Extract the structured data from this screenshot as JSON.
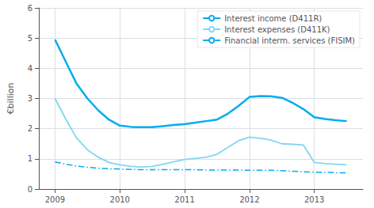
{
  "chart_data": {
    "type": "line",
    "ylabel": "€billion",
    "x": [
      2009,
      2009.17,
      2009.33,
      2009.5,
      2009.67,
      2009.83,
      2010,
      2010.17,
      2010.33,
      2010.5,
      2010.67,
      2010.83,
      2011,
      2011.17,
      2011.33,
      2011.5,
      2011.67,
      2011.83,
      2012,
      2012.17,
      2012.33,
      2012.5,
      2012.67,
      2012.83,
      2013,
      2013.17,
      2013.33,
      2013.5
    ],
    "series": [
      {
        "name": "Interest income (D411R)",
        "color": "#00adef",
        "line_style": "solid",
        "values": [
          4.95,
          4.2,
          3.5,
          3.0,
          2.6,
          2.3,
          2.1,
          2.06,
          2.05,
          2.05,
          2.08,
          2.12,
          2.15,
          2.2,
          2.25,
          2.3,
          2.5,
          2.75,
          3.05,
          3.08,
          3.07,
          3.02,
          2.85,
          2.65,
          2.38,
          2.32,
          2.28,
          2.25
        ]
      },
      {
        "name": "Interest expenses (D411K)",
        "color": "#7fd8f0",
        "line_style": "solid",
        "values": [
          3.0,
          2.3,
          1.7,
          1.3,
          1.05,
          0.88,
          0.8,
          0.75,
          0.73,
          0.75,
          0.82,
          0.9,
          0.98,
          1.02,
          1.05,
          1.15,
          1.38,
          1.6,
          1.72,
          1.68,
          1.62,
          1.5,
          1.48,
          1.46,
          0.88,
          0.84,
          0.82,
          0.8
        ]
      },
      {
        "name": "Financial interm. services (FISIM)",
        "color": "#00adef",
        "line_style": "dashdot",
        "values": [
          0.9,
          0.82,
          0.76,
          0.72,
          0.69,
          0.67,
          0.66,
          0.65,
          0.64,
          0.64,
          0.64,
          0.64,
          0.64,
          0.64,
          0.63,
          0.63,
          0.63,
          0.63,
          0.62,
          0.62,
          0.62,
          0.61,
          0.59,
          0.57,
          0.56,
          0.55,
          0.54,
          0.54
        ]
      }
    ],
    "xlim": [
      2008.75,
      2013.75
    ],
    "xticks": [
      2009,
      2010,
      2011,
      2012,
      2013
    ],
    "ylim": [
      0,
      6
    ],
    "yticks": [
      0,
      1,
      2,
      3,
      4,
      5,
      6
    ],
    "grid": true,
    "legend": "upper right"
  }
}
